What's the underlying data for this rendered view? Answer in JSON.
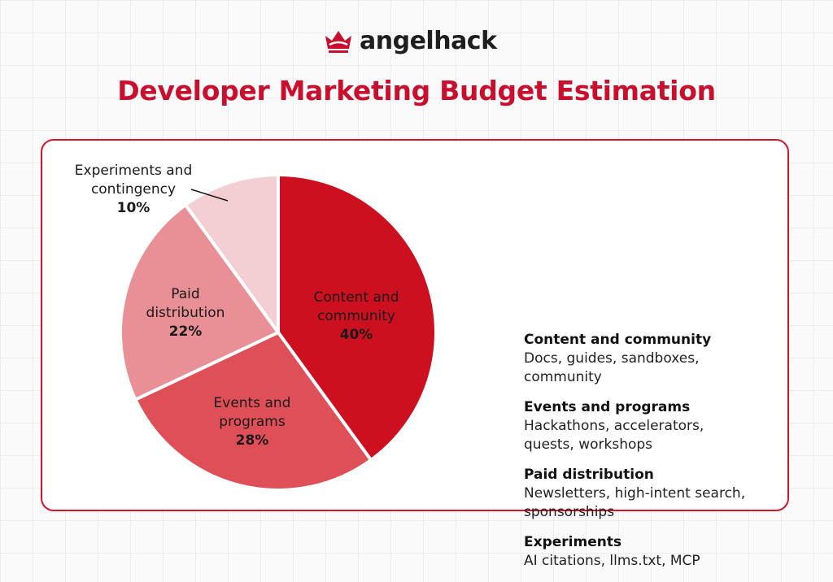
{
  "brand": {
    "name": "angelhack",
    "accent": "#c8102e",
    "icon": "crown-icon"
  },
  "title": "Developer Marketing Budget Estimation",
  "chart_data": {
    "type": "pie",
    "slices": [
      {
        "label_lines": [
          "Content and",
          "community"
        ],
        "value": 40,
        "display": "40%",
        "color": "#cc101f"
      },
      {
        "label_lines": [
          "Events and",
          "programs"
        ],
        "value": 28,
        "display": "28%",
        "color": "#df4f58"
      },
      {
        "label_lines": [
          "Paid",
          "distribution"
        ],
        "value": 22,
        "display": "22%",
        "color": "#e99096"
      },
      {
        "label_lines": [
          "Experiments and",
          "contingency"
        ],
        "value": 10,
        "display": "10%",
        "color": "#f3cfd3"
      }
    ]
  },
  "legend": [
    {
      "title": "Content and community",
      "desc_lines": [
        "Docs, guides, sandboxes,",
        "community"
      ]
    },
    {
      "title": "Events and programs",
      "desc_lines": [
        "Hackathons, accelerators,",
        "quests, workshops"
      ]
    },
    {
      "title": "Paid distribution",
      "desc_lines": [
        "Newsletters, high-intent search,",
        "sponsorships"
      ]
    },
    {
      "title": "Experiments",
      "desc_lines": [
        "AI citations, llms.txt, MCP"
      ]
    }
  ]
}
